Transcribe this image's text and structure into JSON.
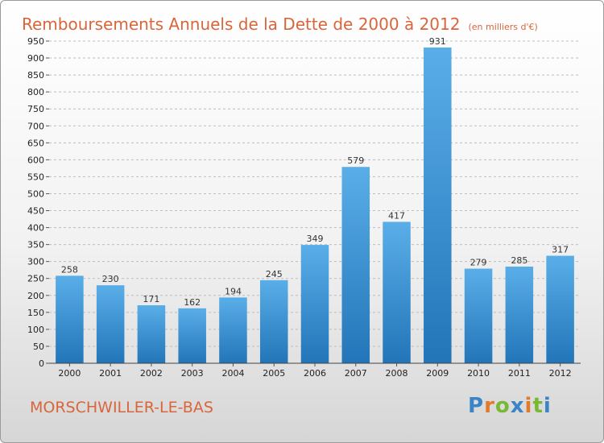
{
  "chart_data": {
    "type": "bar",
    "title": "Remboursements Annuels de la Dette de 2000 à 2012",
    "unit": "(en milliers d'€)",
    "xlabel": "",
    "ylabel": "",
    "categories": [
      "2000",
      "2001",
      "2002",
      "2003",
      "2004",
      "2005",
      "2006",
      "2007",
      "2008",
      "2009",
      "2010",
      "2011",
      "2012"
    ],
    "values": [
      258,
      230,
      171,
      162,
      194,
      245,
      349,
      579,
      417,
      931,
      279,
      285,
      317
    ],
    "ylim": [
      0,
      950
    ],
    "ytick_step": 50,
    "grid": true,
    "legend": "none",
    "bar_color_top": "#5aaee8",
    "bar_color_bottom": "#2275b8"
  },
  "footer": {
    "commune": "MORSCHWILLER-LE-BAS",
    "brand": [
      "P",
      "r",
      "o",
      "x",
      "i",
      "t",
      "i"
    ],
    "brand_colors": [
      "#3b84c8",
      "#e07a2c",
      "#79b833",
      "#3b84c8",
      "#e07a2c",
      "#79b833",
      "#3b84c8"
    ]
  }
}
